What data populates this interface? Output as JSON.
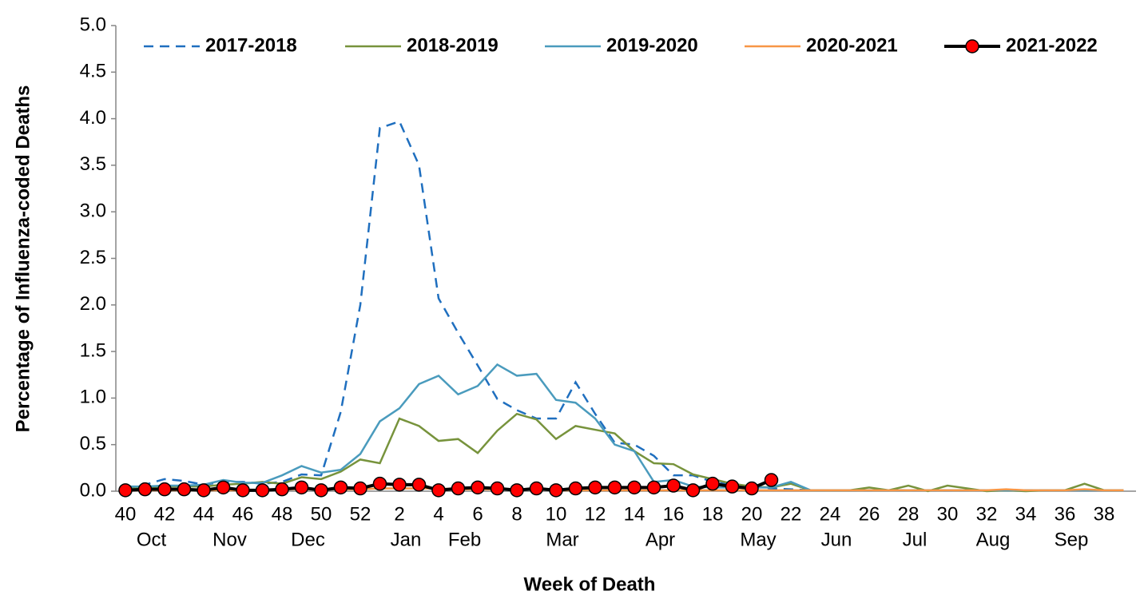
{
  "chart_data": {
    "type": "line",
    "y_label": "Percentage of Influenza-coded Deaths",
    "x_label": "Week of Death",
    "categories": [
      40,
      null,
      42,
      null,
      44,
      null,
      46,
      null,
      48,
      null,
      50,
      null,
      52,
      null,
      2,
      null,
      4,
      null,
      6,
      null,
      8,
      null,
      10,
      null,
      12,
      null,
      14,
      null,
      16,
      null,
      18,
      null,
      20,
      null,
      22,
      null,
      24,
      null,
      26,
      null,
      28,
      null,
      30,
      null,
      32,
      null,
      34,
      null,
      36,
      null,
      38,
      null
    ],
    "month_labels": [
      null,
      "Oct",
      null,
      null,
      null,
      "Nov",
      null,
      null,
      null,
      "Dec",
      null,
      null,
      null,
      null,
      "Jan",
      null,
      null,
      "Feb",
      null,
      null,
      null,
      null,
      "Mar",
      null,
      null,
      null,
      null,
      "Apr",
      null,
      null,
      null,
      null,
      "May",
      null,
      null,
      null,
      "Jun",
      null,
      null,
      null,
      "Jul",
      null,
      null,
      null,
      "Aug",
      null,
      null,
      null,
      "Sep",
      null,
      null,
      null
    ],
    "ylim": [
      0,
      5
    ],
    "yticks": [
      {
        "value": 0,
        "label": "0.0"
      },
      0.5,
      {
        "value": 1,
        "label": "1.0"
      },
      1.5,
      {
        "value": 2,
        "label": "2.0"
      },
      2.5,
      {
        "value": 3,
        "label": "3.0"
      },
      3.5,
      {
        "value": 4,
        "label": "4.0"
      },
      4.5,
      {
        "value": 5,
        "label": "5.0"
      }
    ],
    "series": [
      {
        "name": "2017-2018",
        "color": "#1f6fbf",
        "dashed": true,
        "values": [
          0.03,
          0.07,
          0.13,
          0.11,
          0.07,
          0.1,
          0.1,
          0.08,
          0.1,
          0.18,
          0.17,
          0.85,
          2.0,
          3.9,
          3.97,
          3.5,
          2.07,
          1.7,
          1.35,
          0.99,
          0.87,
          0.78,
          0.78,
          1.17,
          0.83,
          0.52,
          0.5,
          0.38,
          0.17,
          0.17,
          0.1,
          0.07,
          0.05,
          0.03,
          0.02,
          0.01,
          0.01,
          0.01,
          0.01,
          0.01,
          0.01,
          0.01,
          0.01,
          0.01,
          0.01,
          0.01,
          0.01,
          0.01,
          0.01,
          0.01,
          0.01,
          0.01
        ]
      },
      {
        "name": "2018-2019",
        "color": "#77933c",
        "values": [
          0.02,
          0.04,
          0.05,
          0.05,
          0.05,
          0.07,
          0.08,
          0.1,
          0.08,
          0.15,
          0.13,
          0.21,
          0.34,
          0.3,
          0.78,
          0.7,
          0.54,
          0.56,
          0.41,
          0.65,
          0.83,
          0.77,
          0.56,
          0.7,
          0.66,
          0.62,
          0.43,
          0.3,
          0.29,
          0.18,
          0.13,
          0.08,
          0.05,
          0.04,
          0.08,
          0.01,
          0.01,
          0.01,
          0.04,
          0.01,
          0.06,
          0,
          0.06,
          0.03,
          0,
          0.01,
          0,
          0.01,
          0.01,
          0.08,
          0.01,
          0.01
        ]
      },
      {
        "name": "2019-2020",
        "color": "#4a9bbd",
        "values": [
          0.05,
          0.05,
          0.06,
          0.06,
          0.07,
          0.12,
          0.09,
          0.09,
          0.17,
          0.27,
          0.2,
          0.23,
          0.4,
          0.75,
          0.89,
          1.15,
          1.24,
          1.04,
          1.13,
          1.36,
          1.24,
          1.26,
          0.98,
          0.95,
          0.78,
          0.5,
          0.43,
          0.1,
          0.12,
          0.05,
          0.04,
          0.04,
          0.04,
          0.04,
          0.1,
          0.01,
          0.01,
          0.01,
          0.01,
          0.01,
          0.01,
          0.01,
          0.01,
          0.01,
          0.01,
          0.01,
          0.01,
          0.01,
          0.01,
          0.01,
          0.01,
          0.01
        ]
      },
      {
        "name": "2020-2021",
        "color": "#f79646",
        "values": [
          0.01,
          0.01,
          0.01,
          0.01,
          0.01,
          0.01,
          0.01,
          0.01,
          0.02,
          0.02,
          0.02,
          0.02,
          0.02,
          0.03,
          0.03,
          0.03,
          0.03,
          0.02,
          0.02,
          0.02,
          0.02,
          0.02,
          0.01,
          0.01,
          0.01,
          0.01,
          0.01,
          0.01,
          0.01,
          0.01,
          0.01,
          0.01,
          0.01,
          0.01,
          0.01,
          0.01,
          0.01,
          0.01,
          0.01,
          0.01,
          0.01,
          0.01,
          0.01,
          0.01,
          0.01,
          0.02,
          0.01,
          0.01,
          0.01,
          0.02,
          0.01,
          0.01
        ]
      },
      {
        "name": "2021-2022",
        "color": "#000000",
        "marker_color": "#ff0000",
        "values": [
          0.01,
          0.02,
          0.02,
          0.02,
          0.01,
          0.04,
          0.01,
          0.01,
          0.02,
          0.04,
          0.01,
          0.04,
          0.03,
          0.08,
          0.07,
          0.07,
          0.01,
          0.03,
          0.04,
          0.03,
          0.01,
          0.03,
          0.01,
          0.03,
          0.04,
          0.04,
          0.04,
          0.04,
          0.06,
          0.01,
          0.08,
          0.05,
          0.03,
          0.12,
          null,
          null,
          null,
          null,
          null,
          null,
          null,
          null,
          null,
          null,
          null,
          null,
          null,
          null,
          null,
          null,
          null,
          null
        ]
      }
    ]
  }
}
